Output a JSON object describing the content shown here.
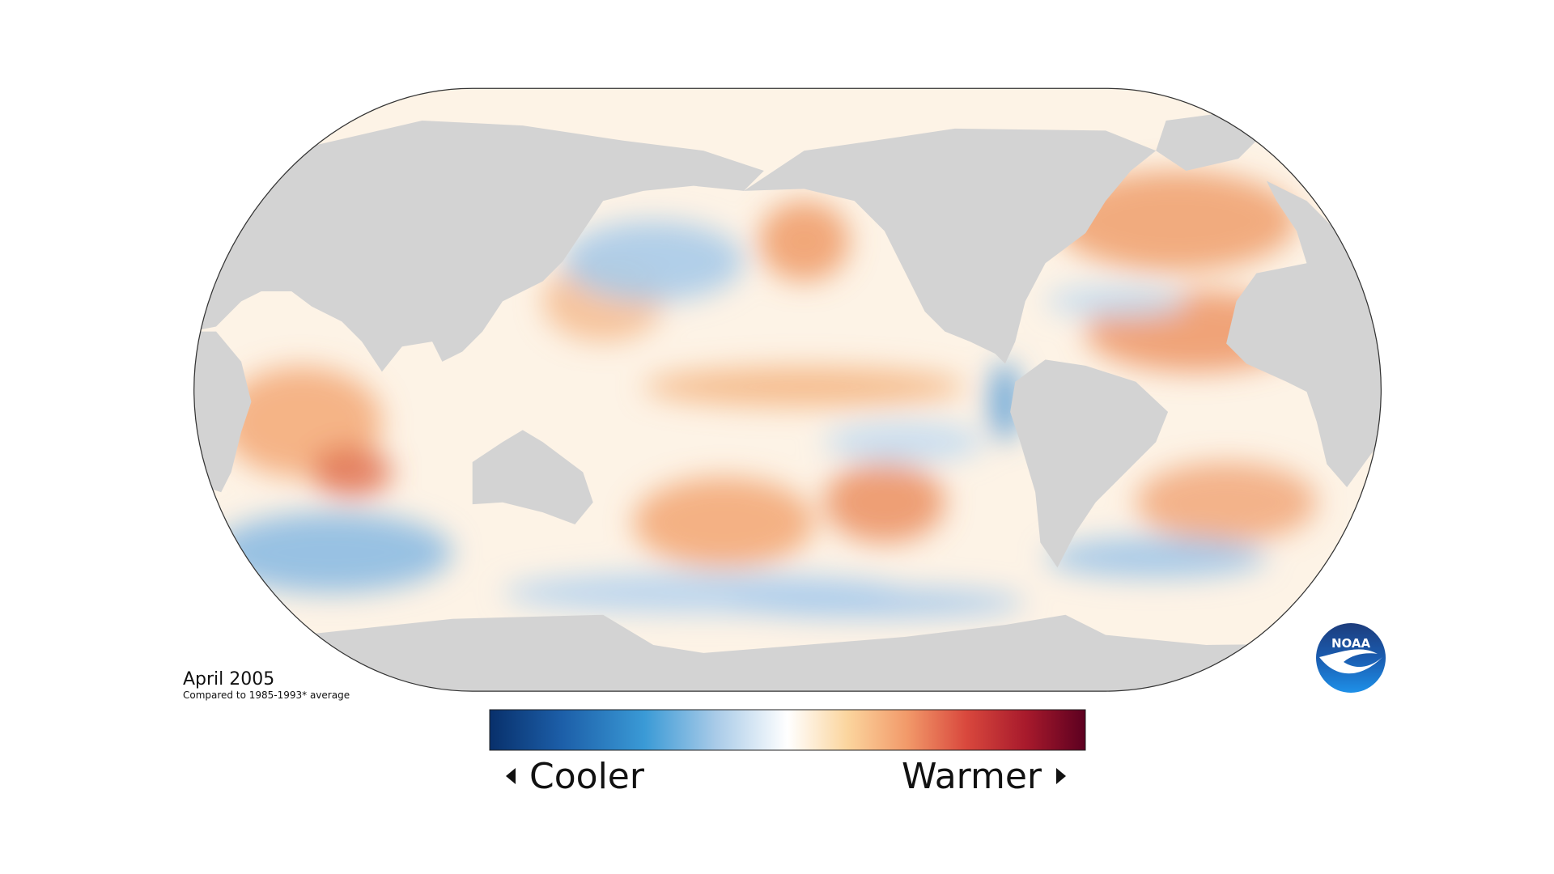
{
  "map": {
    "title": "April 2005",
    "subtitle": "Compared to 1985-1993* average"
  },
  "legend": {
    "low_label": "Cooler",
    "high_label": "Warmer"
  },
  "logo": {
    "text": "NOAA"
  }
}
